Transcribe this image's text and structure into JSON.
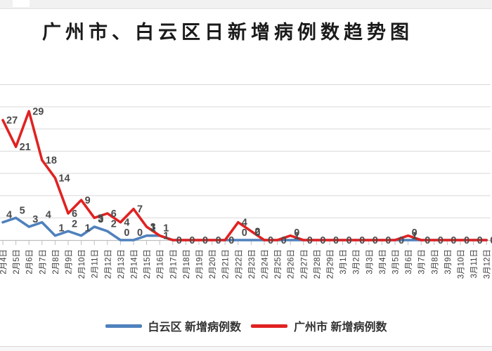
{
  "title": "广州市、白云区日新增病例数趋势图",
  "legend": {
    "items": [
      {
        "label": "白云区 新增病例数",
        "color": "#4f81bd"
      },
      {
        "label": "广州市 新增病例数",
        "color": "#e02222"
      }
    ]
  },
  "colors": {
    "baiyun_line": "#4f81bd",
    "guangzhou_line": "#e02222",
    "gridline": "#d9d9d9",
    "axis": "#bfbfbf",
    "data_label": "#4a4a4a",
    "x_tick_label": "#3f3f3f",
    "page_strip": "#f1f1f1"
  },
  "chart_data": {
    "type": "line",
    "title": "广州市、白云区日新增病例数趋势图",
    "categories": [
      "2月4日",
      "2月5日",
      "2月6日",
      "2月7日",
      "2月8日",
      "2月9日",
      "2月10日",
      "2月11日",
      "2月12日",
      "2月13日",
      "2月14日",
      "2月15日",
      "2月16日",
      "2月17日",
      "2月18日",
      "2月19日",
      "2月20日",
      "2月21日",
      "2月22日",
      "2月23日",
      "2月24日",
      "2月25日",
      "2月26日",
      "2月27日",
      "2月28日",
      "2月29日",
      "3月1日",
      "3月2日",
      "3月3日",
      "3月4日",
      "3月5日",
      "3月6日",
      "3月7日",
      "3月8日",
      "3月9日",
      "3月10日",
      "3月11日",
      "3月12日"
    ],
    "series": [
      {
        "name": "白云区 新增病例数",
        "color": "#4f81bd",
        "values": [
          4,
          5,
          3,
          4,
          1,
          2,
          1,
          3,
          2,
          0,
          0,
          1,
          1,
          0,
          0,
          0,
          0,
          0,
          0,
          0,
          0,
          0,
          0,
          0,
          0,
          0,
          0,
          0,
          0,
          0,
          0,
          0,
          0,
          0,
          0,
          0,
          0,
          0
        ]
      },
      {
        "name": "广州市 新增病例数",
        "color": "#e02222",
        "values": [
          27,
          21,
          29,
          18,
          14,
          6,
          9,
          5,
          6,
          4,
          7,
          3,
          1,
          0,
          0,
          0,
          0,
          0,
          4,
          2,
          0,
          0,
          1,
          0,
          0,
          0,
          0,
          0,
          0,
          0,
          0,
          1,
          0,
          0,
          0,
          0,
          0,
          0
        ]
      }
    ],
    "xlabel": "",
    "ylabel": "",
    "ylim": [
      0,
      35
    ],
    "grid": true,
    "grid_step": 5,
    "y_axis_labels_visible": false,
    "x_labels_rotation_degrees": -90,
    "data_labels": true,
    "legend_position": "bottom"
  }
}
